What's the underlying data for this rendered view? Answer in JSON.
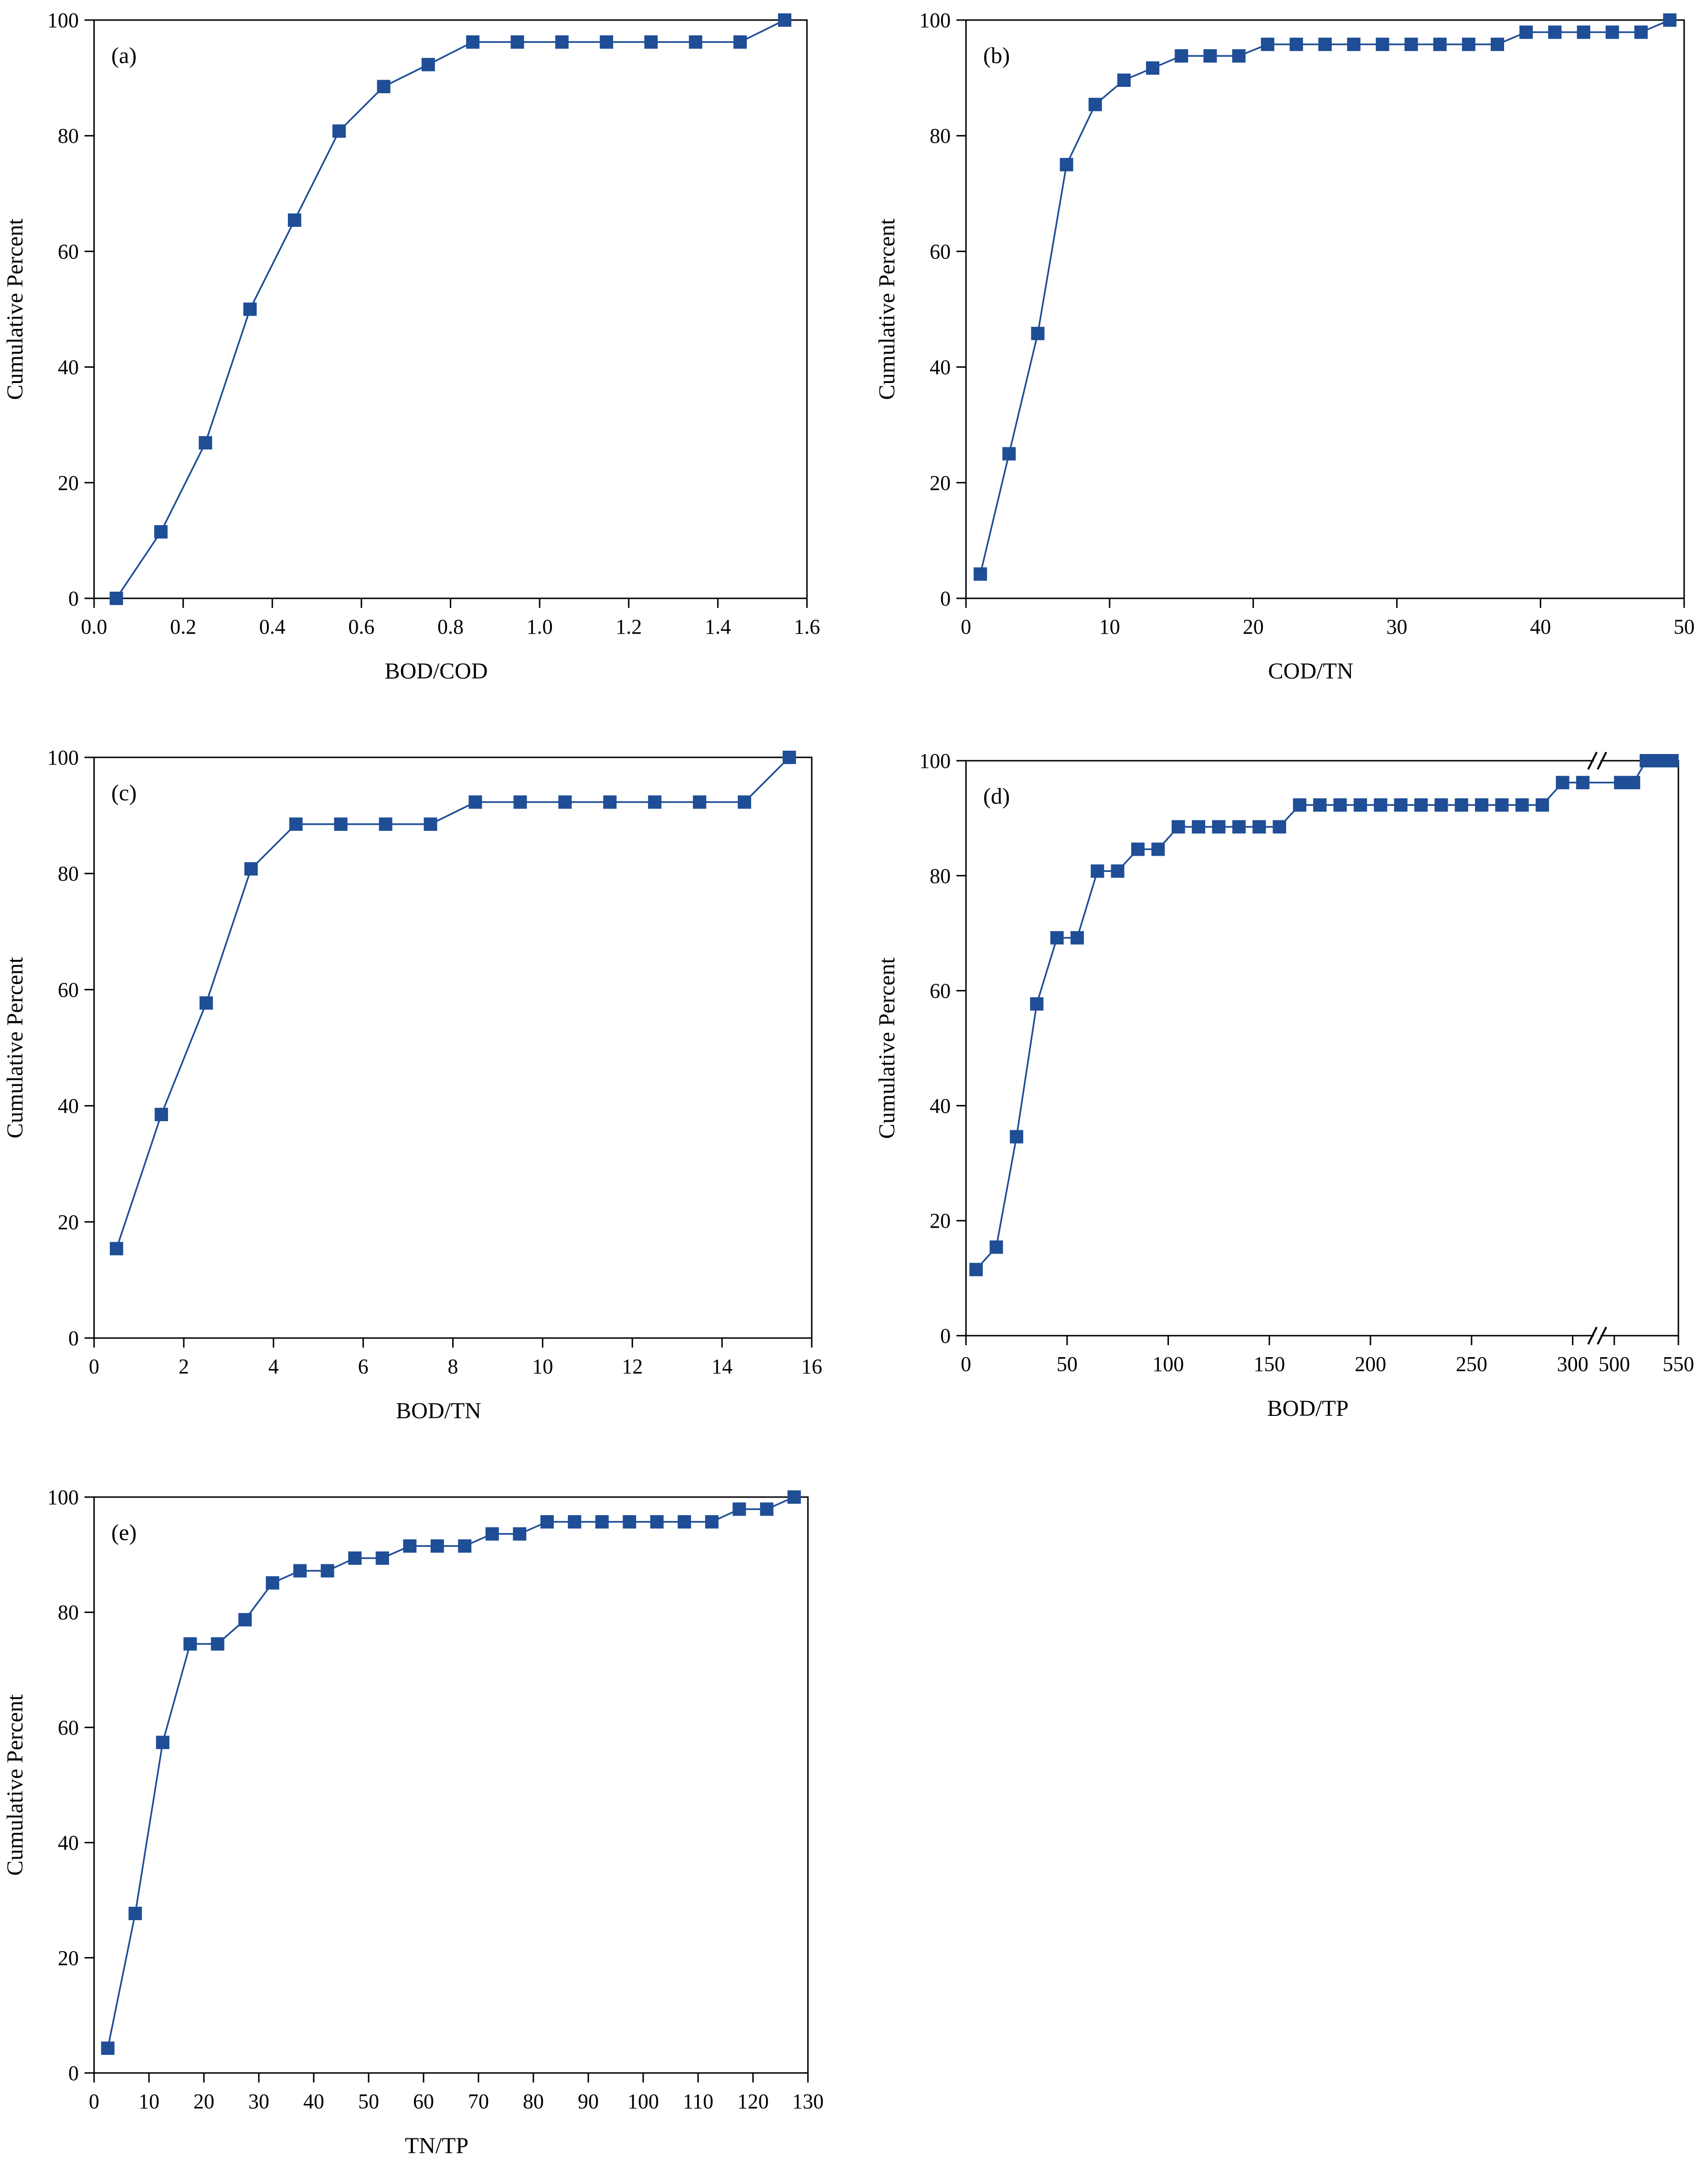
{
  "colors": {
    "series": "#1f4e96",
    "axis": "#000000"
  },
  "chart_data": [
    {
      "id": "a",
      "type": "line",
      "panel_label": "(a)",
      "xlabel": "BOD/COD",
      "ylabel": "Cumulative Percent",
      "xlim": [
        0,
        1.6
      ],
      "ylim": [
        0,
        100
      ],
      "xticks": [
        "0.0",
        "0.2",
        "0.4",
        "0.6",
        "0.8",
        "1.0",
        "1.2",
        "1.4",
        "1.6"
      ],
      "yticks": [
        "0",
        "20",
        "40",
        "60",
        "80",
        "100"
      ],
      "series": [
        {
          "name": "Cumulative Percent",
          "x": [
            0.05,
            0.15,
            0.25,
            0.35,
            0.45,
            0.55,
            0.65,
            0.75,
            0.85,
            0.95,
            1.05,
            1.15,
            1.25,
            1.35,
            1.45,
            1.55
          ],
          "y": [
            0,
            11.5,
            26.9,
            50.0,
            65.4,
            80.8,
            88.5,
            92.3,
            96.2,
            96.2,
            96.2,
            96.2,
            96.2,
            96.2,
            96.2,
            100
          ]
        }
      ]
    },
    {
      "id": "b",
      "type": "line",
      "panel_label": "(b)",
      "xlabel": "COD/TN",
      "ylabel": "Cumulative Percent",
      "xlim": [
        0,
        50
      ],
      "ylim": [
        0,
        100
      ],
      "xticks": [
        "0",
        "10",
        "20",
        "30",
        "40",
        "50"
      ],
      "yticks": [
        "0",
        "20",
        "40",
        "60",
        "80",
        "100"
      ],
      "series": [
        {
          "name": "Cumulative Percent",
          "x": [
            1,
            3,
            5,
            7,
            9,
            11,
            13,
            15,
            17,
            19,
            21,
            23,
            25,
            27,
            29,
            31,
            33,
            35,
            37,
            39,
            41,
            43,
            45,
            47,
            49
          ],
          "y": [
            4.2,
            25.0,
            45.8,
            75.0,
            85.4,
            89.6,
            91.7,
            93.8,
            93.8,
            93.8,
            95.8,
            95.8,
            95.8,
            95.8,
            95.8,
            95.8,
            95.8,
            95.8,
            95.8,
            97.9,
            97.9,
            97.9,
            97.9,
            97.9,
            100
          ]
        }
      ]
    },
    {
      "id": "c",
      "type": "line",
      "panel_label": "(c)",
      "xlabel": "BOD/TN",
      "ylabel": "Cumulative Percent",
      "xlim": [
        0,
        16
      ],
      "ylim": [
        0,
        100
      ],
      "xticks": [
        "0",
        "2",
        "4",
        "6",
        "8",
        "10",
        "12",
        "14",
        "16"
      ],
      "yticks": [
        "0",
        "20",
        "40",
        "60",
        "80",
        "100"
      ],
      "series": [
        {
          "name": "Cumulative Percent",
          "x": [
            0.5,
            1.5,
            2.5,
            3.5,
            4.5,
            5.5,
            6.5,
            7.5,
            8.5,
            9.5,
            10.5,
            11.5,
            12.5,
            13.5,
            14.5,
            15.5
          ],
          "y": [
            15.4,
            38.5,
            57.7,
            80.8,
            88.5,
            88.5,
            88.5,
            88.5,
            92.3,
            92.3,
            92.3,
            92.3,
            92.3,
            92.3,
            92.3,
            100
          ]
        }
      ]
    },
    {
      "id": "d",
      "type": "line",
      "panel_label": "(d)",
      "xlabel": "BOD/TP",
      "ylabel": "Cumulative Percent",
      "xlim": [
        0,
        550
      ],
      "axis_break": {
        "from": 310,
        "to": 490
      },
      "ylim": [
        0,
        100
      ],
      "xticks": [
        "0",
        "50",
        "100",
        "150",
        "200",
        "250",
        "300",
        "500",
        "550"
      ],
      "yticks": [
        "0",
        "20",
        "40",
        "60",
        "80",
        "100"
      ],
      "series": [
        {
          "name": "Cumulative Percent",
          "x": [
            5,
            15,
            25,
            35,
            45,
            55,
            65,
            75,
            85,
            95,
            105,
            115,
            125,
            135,
            145,
            155,
            165,
            175,
            185,
            195,
            205,
            215,
            225,
            235,
            245,
            255,
            265,
            275,
            285,
            295,
            305,
            505,
            515,
            525,
            535,
            545
          ],
          "y": [
            11.5,
            15.4,
            34.6,
            57.7,
            69.2,
            69.2,
            80.8,
            80.8,
            84.6,
            84.6,
            88.5,
            88.5,
            88.5,
            88.5,
            88.5,
            88.5,
            92.3,
            92.3,
            92.3,
            92.3,
            92.3,
            92.3,
            92.3,
            92.3,
            92.3,
            92.3,
            92.3,
            92.3,
            92.3,
            96.2,
            96.2,
            96.2,
            96.2,
            100,
            100,
            100
          ]
        }
      ]
    },
    {
      "id": "e",
      "type": "line",
      "panel_label": "(e)",
      "xlabel": "TN/TP",
      "ylabel": "Cumulative Percent",
      "xlim": [
        0,
        130
      ],
      "ylim": [
        0,
        100
      ],
      "xticks": [
        "0",
        "10",
        "20",
        "30",
        "40",
        "50",
        "60",
        "70",
        "80",
        "90",
        "100",
        "110",
        "120",
        "130"
      ],
      "yticks": [
        "0",
        "20",
        "40",
        "60",
        "80",
        "100"
      ],
      "series": [
        {
          "name": "Cumulative Percent",
          "x": [
            2.5,
            7.5,
            12.5,
            17.5,
            22.5,
            27.5,
            32.5,
            37.5,
            42.5,
            47.5,
            52.5,
            57.5,
            62.5,
            67.5,
            72.5,
            77.5,
            82.5,
            87.5,
            92.5,
            97.5,
            102.5,
            107.5,
            112.5,
            117.5,
            122.5,
            127.5
          ],
          "y": [
            4.3,
            27.7,
            57.4,
            74.5,
            74.5,
            78.7,
            85.1,
            87.2,
            87.2,
            89.4,
            89.4,
            91.5,
            91.5,
            91.5,
            93.6,
            93.6,
            95.7,
            95.7,
            95.7,
            95.7,
            95.7,
            95.7,
            95.7,
            97.9,
            97.9,
            100
          ]
        }
      ]
    }
  ]
}
